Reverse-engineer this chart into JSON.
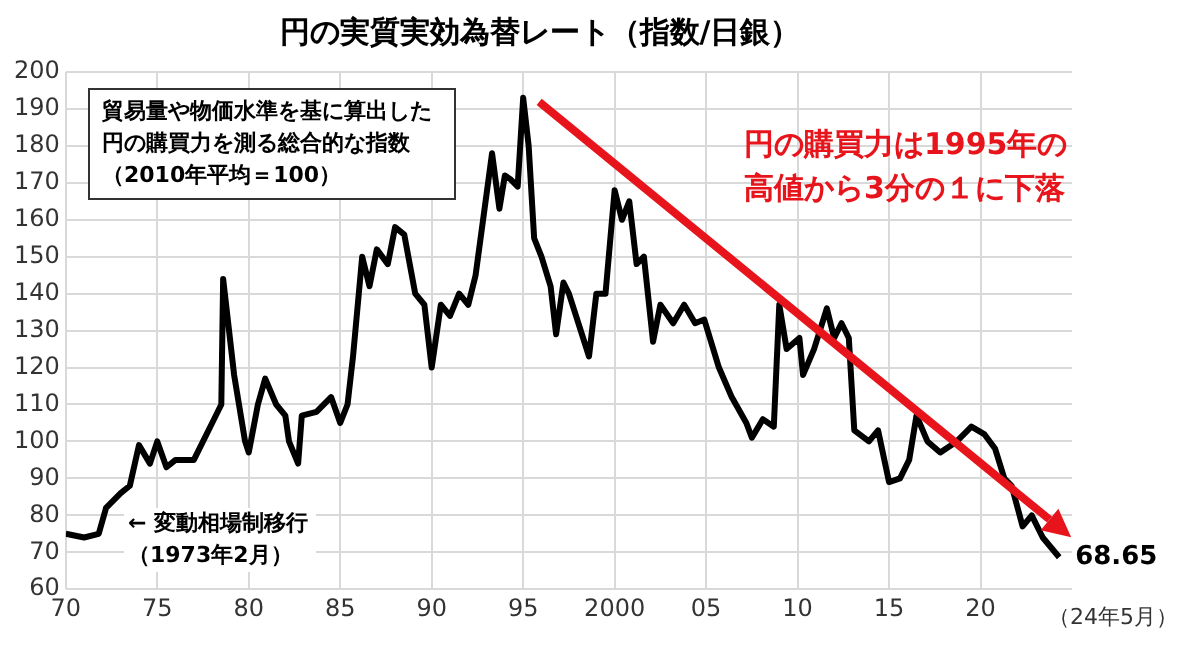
{
  "chart_data": {
    "type": "line",
    "title": "円の実質実効為替レート（指数/日銀）",
    "x": [
      1970,
      1971,
      1971.8,
      1972.2,
      1973,
      1973.5,
      1974,
      1974.6,
      1975,
      1975.5,
      1976,
      1977,
      1977.5,
      1978,
      1978.5,
      1978.6,
      1979.2,
      1979.8,
      1980,
      1980.5,
      1980.9,
      1981.5,
      1982,
      1982.2,
      1982.7,
      1982.9,
      1983.7,
      1984.5,
      1985,
      1985.4,
      1985.7,
      1986.2,
      1986.6,
      1987,
      1987.6,
      1988,
      1988.5,
      1989.1,
      1989.6,
      1990,
      1990.5,
      1991,
      1991.5,
      1992,
      1992.4,
      1993.3,
      1993.7,
      1994,
      1994.3,
      1994.7,
      1995,
      1995.3,
      1995.6,
      1996,
      1996.5,
      1996.8,
      1997.2,
      1997.5,
      1998.6,
      1999,
      1999.5,
      2000,
      2000.4,
      2000.8,
      2001.2,
      2001.6,
      2002.1,
      2002.5,
      2003.2,
      2003.8,
      2004.4,
      2004.9,
      2005.7,
      2006.4,
      2007.2,
      2007.5,
      2008.1,
      2008.7,
      2009,
      2009.4,
      2010.1,
      2010.3,
      2010.9,
      2011.6,
      2012,
      2012.4,
      2012.8,
      2013.1,
      2013.9,
      2014.4,
      2015,
      2015.6,
      2016.1,
      2016.5,
      2017.1,
      2017.8,
      2018.7,
      2019.5,
      2020.2,
      2020.8,
      2021.3,
      2021.7,
      2022.3,
      2022.8,
      2023.4,
      2024.3
    ],
    "series": [
      {
        "color": "#000000",
        "values": [
          75,
          74,
          75,
          82,
          86,
          88,
          99,
          94,
          100,
          93,
          95,
          95,
          100,
          105,
          110,
          144,
          118,
          100,
          97,
          110,
          117,
          110,
          107,
          100,
          94,
          107,
          108,
          112,
          105,
          110,
          123,
          150,
          142,
          152,
          148,
          158,
          156,
          140,
          137,
          120,
          137,
          134,
          140,
          137,
          145,
          178,
          163,
          172,
          171,
          169,
          193,
          180,
          155,
          150,
          142,
          129,
          143,
          140,
          123,
          140,
          140,
          168,
          160,
          165,
          148,
          150,
          127,
          137,
          132,
          137,
          132,
          133,
          120,
          112,
          105,
          101,
          106,
          104,
          137,
          125,
          128,
          118,
          125,
          136,
          128,
          132,
          128,
          103,
          100,
          103,
          89,
          90,
          95,
          107,
          100,
          97,
          100,
          104,
          102,
          98,
          90,
          88,
          77,
          80,
          74,
          68.65
        ]
      }
    ],
    "xlim": [
      1970,
      2025
    ],
    "xticks": [
      {
        "value": 1970,
        "label": "70"
      },
      {
        "value": 1975,
        "label": "75"
      },
      {
        "value": 1980,
        "label": "80"
      },
      {
        "value": 1985,
        "label": "85"
      },
      {
        "value": 1990,
        "label": "90"
      },
      {
        "value": 1995,
        "label": "95"
      },
      {
        "value": 2000,
        "label": "2000"
      },
      {
        "value": 2005,
        "label": "05"
      },
      {
        "value": 2010,
        "label": "10"
      },
      {
        "value": 2015,
        "label": "15"
      },
      {
        "value": 2020,
        "label": "20"
      }
    ],
    "ylim": [
      60,
      200
    ],
    "yticks": [
      60,
      70,
      80,
      90,
      100,
      110,
      120,
      130,
      140,
      150,
      160,
      170,
      180,
      190,
      200
    ],
    "grid": true,
    "legend": false,
    "marker": "none",
    "line_style": "solid",
    "annotations": [
      "貿易量や物価水準を基に算出した円の購買力を測る総合的な指数（2010年平均＝100）",
      "← 変動相場制移行（1973年2月）",
      "円の購買力は1995年の高値から3分の１に下落",
      {
        "text": "68.65",
        "x": 2024.3,
        "y": 68.65
      },
      "（24年5月）"
    ]
  }
}
